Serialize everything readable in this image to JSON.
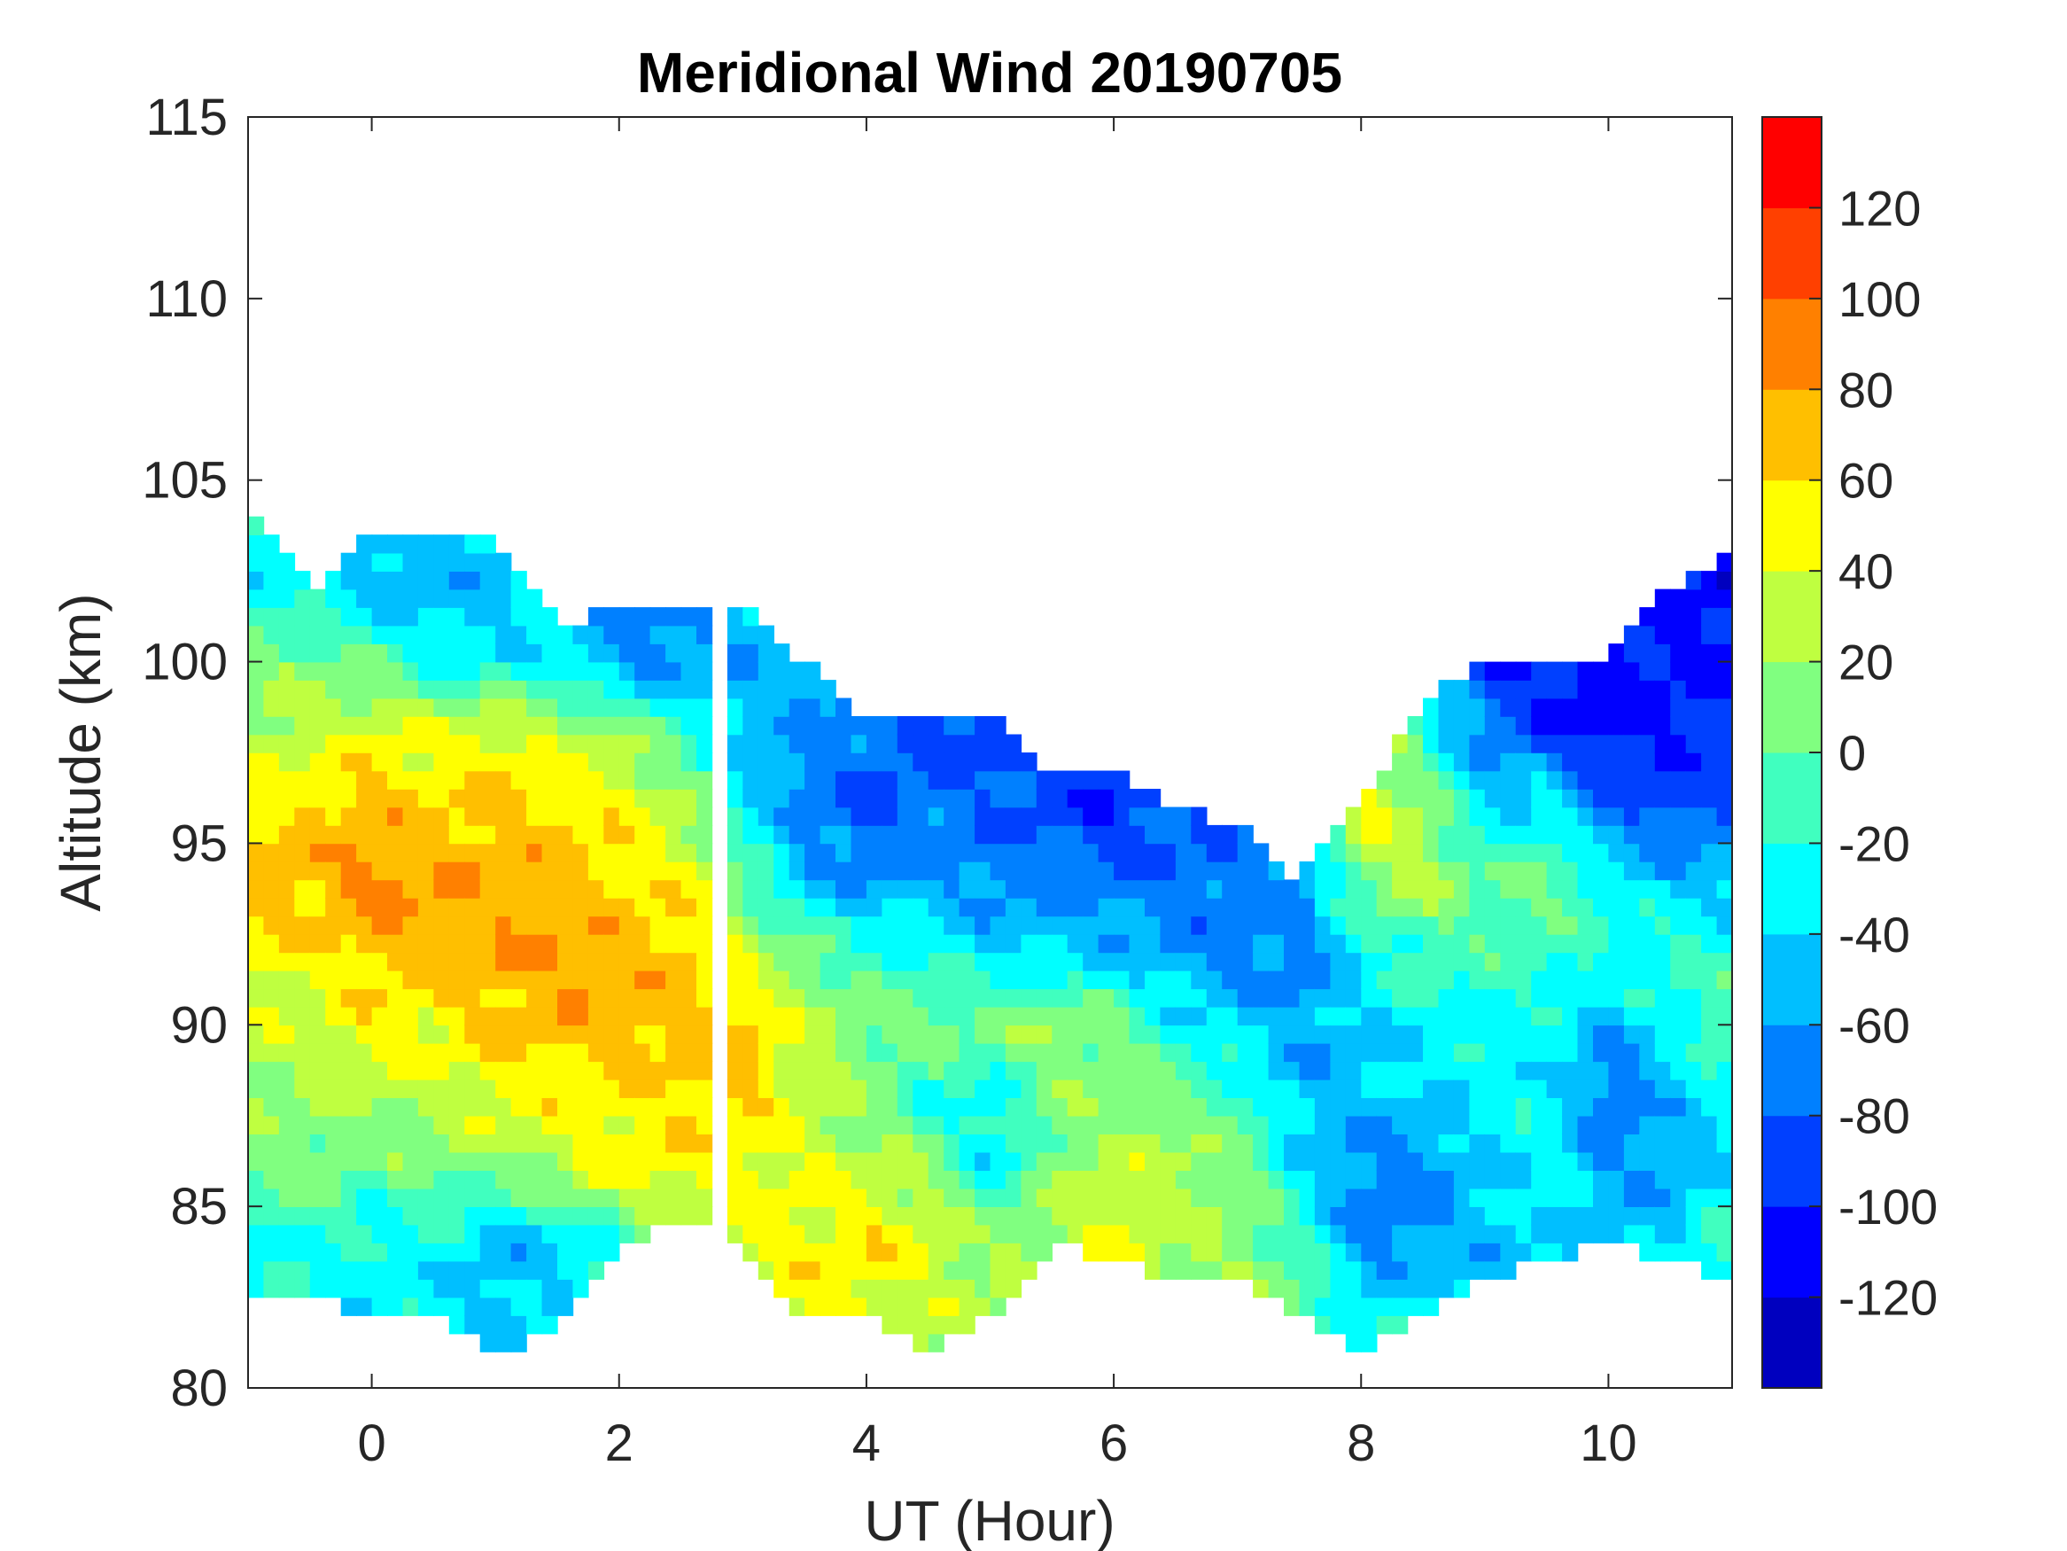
{
  "chart_data": {
    "type": "heatmap",
    "subtype": "filled-contour",
    "title": "Meridional Wind 20190705",
    "xlabel": "UT (Hour)",
    "ylabel": "Altitude (km)",
    "xlim": [
      -1,
      11
    ],
    "ylim": [
      80,
      115
    ],
    "xticks": [
      0,
      2,
      4,
      6,
      8,
      10
    ],
    "yticks": [
      80,
      85,
      90,
      95,
      100,
      105,
      110,
      115
    ],
    "colorbar": {
      "levels": [
        -140,
        -120,
        -100,
        -80,
        -60,
        -40,
        -20,
        0,
        20,
        40,
        60,
        80,
        100,
        120,
        140
      ],
      "ticks": [
        -120,
        -100,
        -80,
        -60,
        -40,
        -20,
        0,
        20,
        40,
        60,
        80,
        100,
        120
      ],
      "colors": [
        "#0000bf",
        "#0000ff",
        "#0040ff",
        "#0080ff",
        "#00bfff",
        "#00ffff",
        "#40ffbf",
        "#80ff80",
        "#bfff40",
        "#ffff00",
        "#ffbf00",
        "#ff8000",
        "#ff4000",
        "#ff0000"
      ]
    },
    "data_gap_hours": [
      2.72,
      2.9
    ],
    "altitudes": [
      82,
      84,
      86,
      88,
      90,
      92,
      94,
      96,
      98,
      100,
      102,
      104
    ],
    "columns": [
      {
        "hour": -1,
        "bottom": 82.5,
        "top": 104,
        "values": [
          -30,
          -30,
          10,
          20,
          30,
          50,
          70,
          50,
          30,
          10,
          -30,
          -30
        ]
      },
      {
        "hour": -0.5,
        "bottom": 82.5,
        "top": 102,
        "values": [
          -30,
          -20,
          10,
          20,
          30,
          50,
          70,
          60,
          30,
          10,
          -30,
          null
        ]
      },
      {
        "hour": 0,
        "bottom": 82,
        "top": 103.5,
        "values": [
          -30,
          -30,
          0,
          30,
          50,
          70,
          90,
          70,
          50,
          0,
          -50,
          null
        ]
      },
      {
        "hour": 0.5,
        "bottom": 82,
        "top": 103.5,
        "values": [
          -30,
          -30,
          10,
          30,
          50,
          70,
          80,
          60,
          40,
          -30,
          -50,
          null
        ]
      },
      {
        "hour": 1,
        "bottom": 81,
        "top": 103.5,
        "values": [
          -50,
          -50,
          10,
          50,
          60,
          80,
          70,
          70,
          50,
          -30,
          -50,
          null
        ]
      },
      {
        "hour": 1.5,
        "bottom": 81.5,
        "top": 101,
        "values": [
          -30,
          -50,
          30,
          50,
          70,
          80,
          70,
          60,
          30,
          -30,
          null,
          null
        ]
      },
      {
        "hour": 2,
        "bottom": 84,
        "top": 101.5,
        "values": [
          null,
          -20,
          50,
          50,
          70,
          70,
          60,
          50,
          20,
          -60,
          null,
          null
        ]
      },
      {
        "hour": 2.5,
        "bottom": 84.5,
        "top": 101.5,
        "values": [
          null,
          30,
          50,
          60,
          70,
          70,
          50,
          30,
          -10,
          -70,
          null,
          null
        ]
      },
      {
        "hour": 3,
        "bottom": 84,
        "top": 101.5,
        "values": [
          null,
          40,
          50,
          60,
          70,
          30,
          0,
          -30,
          -50,
          -50,
          null,
          null
        ]
      },
      {
        "hour": 3.5,
        "bottom": 82,
        "top": 100,
        "values": [
          50,
          50,
          40,
          30,
          30,
          10,
          -50,
          -70,
          -60,
          -50,
          null,
          null
        ]
      },
      {
        "hour": 4,
        "bottom": 82,
        "top": 98.5,
        "values": [
          40,
          60,
          30,
          10,
          10,
          -20,
          -60,
          -90,
          -70,
          null,
          null,
          null
        ]
      },
      {
        "hour": 4.5,
        "bottom": 81,
        "top": 98.5,
        "values": [
          30,
          40,
          20,
          -20,
          10,
          -20,
          -60,
          -70,
          -90,
          null,
          null,
          null
        ]
      },
      {
        "hour": 5,
        "bottom": 82,
        "top": 98.5,
        "values": [
          20,
          20,
          -40,
          -30,
          10,
          -40,
          -70,
          -80,
          -90,
          null,
          null,
          null
        ]
      },
      {
        "hour": 5.5,
        "bottom": 84,
        "top": 97,
        "values": [
          null,
          20,
          10,
          10,
          20,
          -40,
          -70,
          -90,
          null,
          null,
          null,
          null
        ]
      },
      {
        "hour": 6,
        "bottom": 83.5,
        "top": 97,
        "values": [
          null,
          50,
          30,
          10,
          10,
          -50,
          -70,
          -100,
          null,
          null,
          null,
          null
        ]
      },
      {
        "hour": 6.5,
        "bottom": 83,
        "top": 96,
        "values": [
          null,
          20,
          30,
          10,
          -30,
          -60,
          -80,
          -80,
          null,
          null,
          null,
          null
        ]
      },
      {
        "hour": 7,
        "bottom": 83,
        "top": 95.5,
        "values": [
          null,
          20,
          10,
          -10,
          -40,
          -70,
          -70,
          null,
          null,
          null,
          null,
          null
        ]
      },
      {
        "hour": 7.5,
        "bottom": 82,
        "top": 94,
        "values": [
          10,
          -10,
          -30,
          -50,
          -60,
          -70,
          -60,
          null,
          null,
          null,
          null,
          null
        ]
      },
      {
        "hour": 8,
        "bottom": 81,
        "top": 96,
        "values": [
          -30,
          -70,
          -70,
          -50,
          -40,
          -30,
          10,
          50,
          null,
          null,
          null,
          null
        ]
      },
      {
        "hour": 8.5,
        "bottom": 82,
        "top": 99,
        "values": [
          -30,
          -60,
          -70,
          -40,
          -30,
          -10,
          30,
          20,
          -20,
          null,
          null,
          null
        ]
      },
      {
        "hour": 9,
        "bottom": 83,
        "top": 100,
        "values": [
          null,
          -50,
          -40,
          -30,
          -30,
          -10,
          0,
          -40,
          -70,
          -90,
          null,
          null
        ]
      },
      {
        "hour": 9.5,
        "bottom": 83.5,
        "top": 100,
        "values": [
          null,
          -40,
          -30,
          -30,
          -30,
          -10,
          10,
          -30,
          -90,
          -110,
          null,
          null
        ]
      },
      {
        "hour": 10,
        "bottom": 84,
        "top": 100,
        "values": [
          null,
          -50,
          -60,
          -80,
          -50,
          -20,
          -30,
          -80,
          -110,
          -110,
          null,
          null
        ]
      },
      {
        "hour": 10.5,
        "bottom": 83.5,
        "top": 102,
        "values": [
          null,
          -40,
          -60,
          -50,
          -30,
          -10,
          -50,
          -90,
          -100,
          -100,
          -100,
          null
        ]
      },
      {
        "hour": 11,
        "bottom": 83,
        "top": 103,
        "values": [
          null,
          -10,
          -40,
          -30,
          10,
          -20,
          -50,
          -80,
          -90,
          -110,
          -110,
          null
        ]
      }
    ]
  }
}
